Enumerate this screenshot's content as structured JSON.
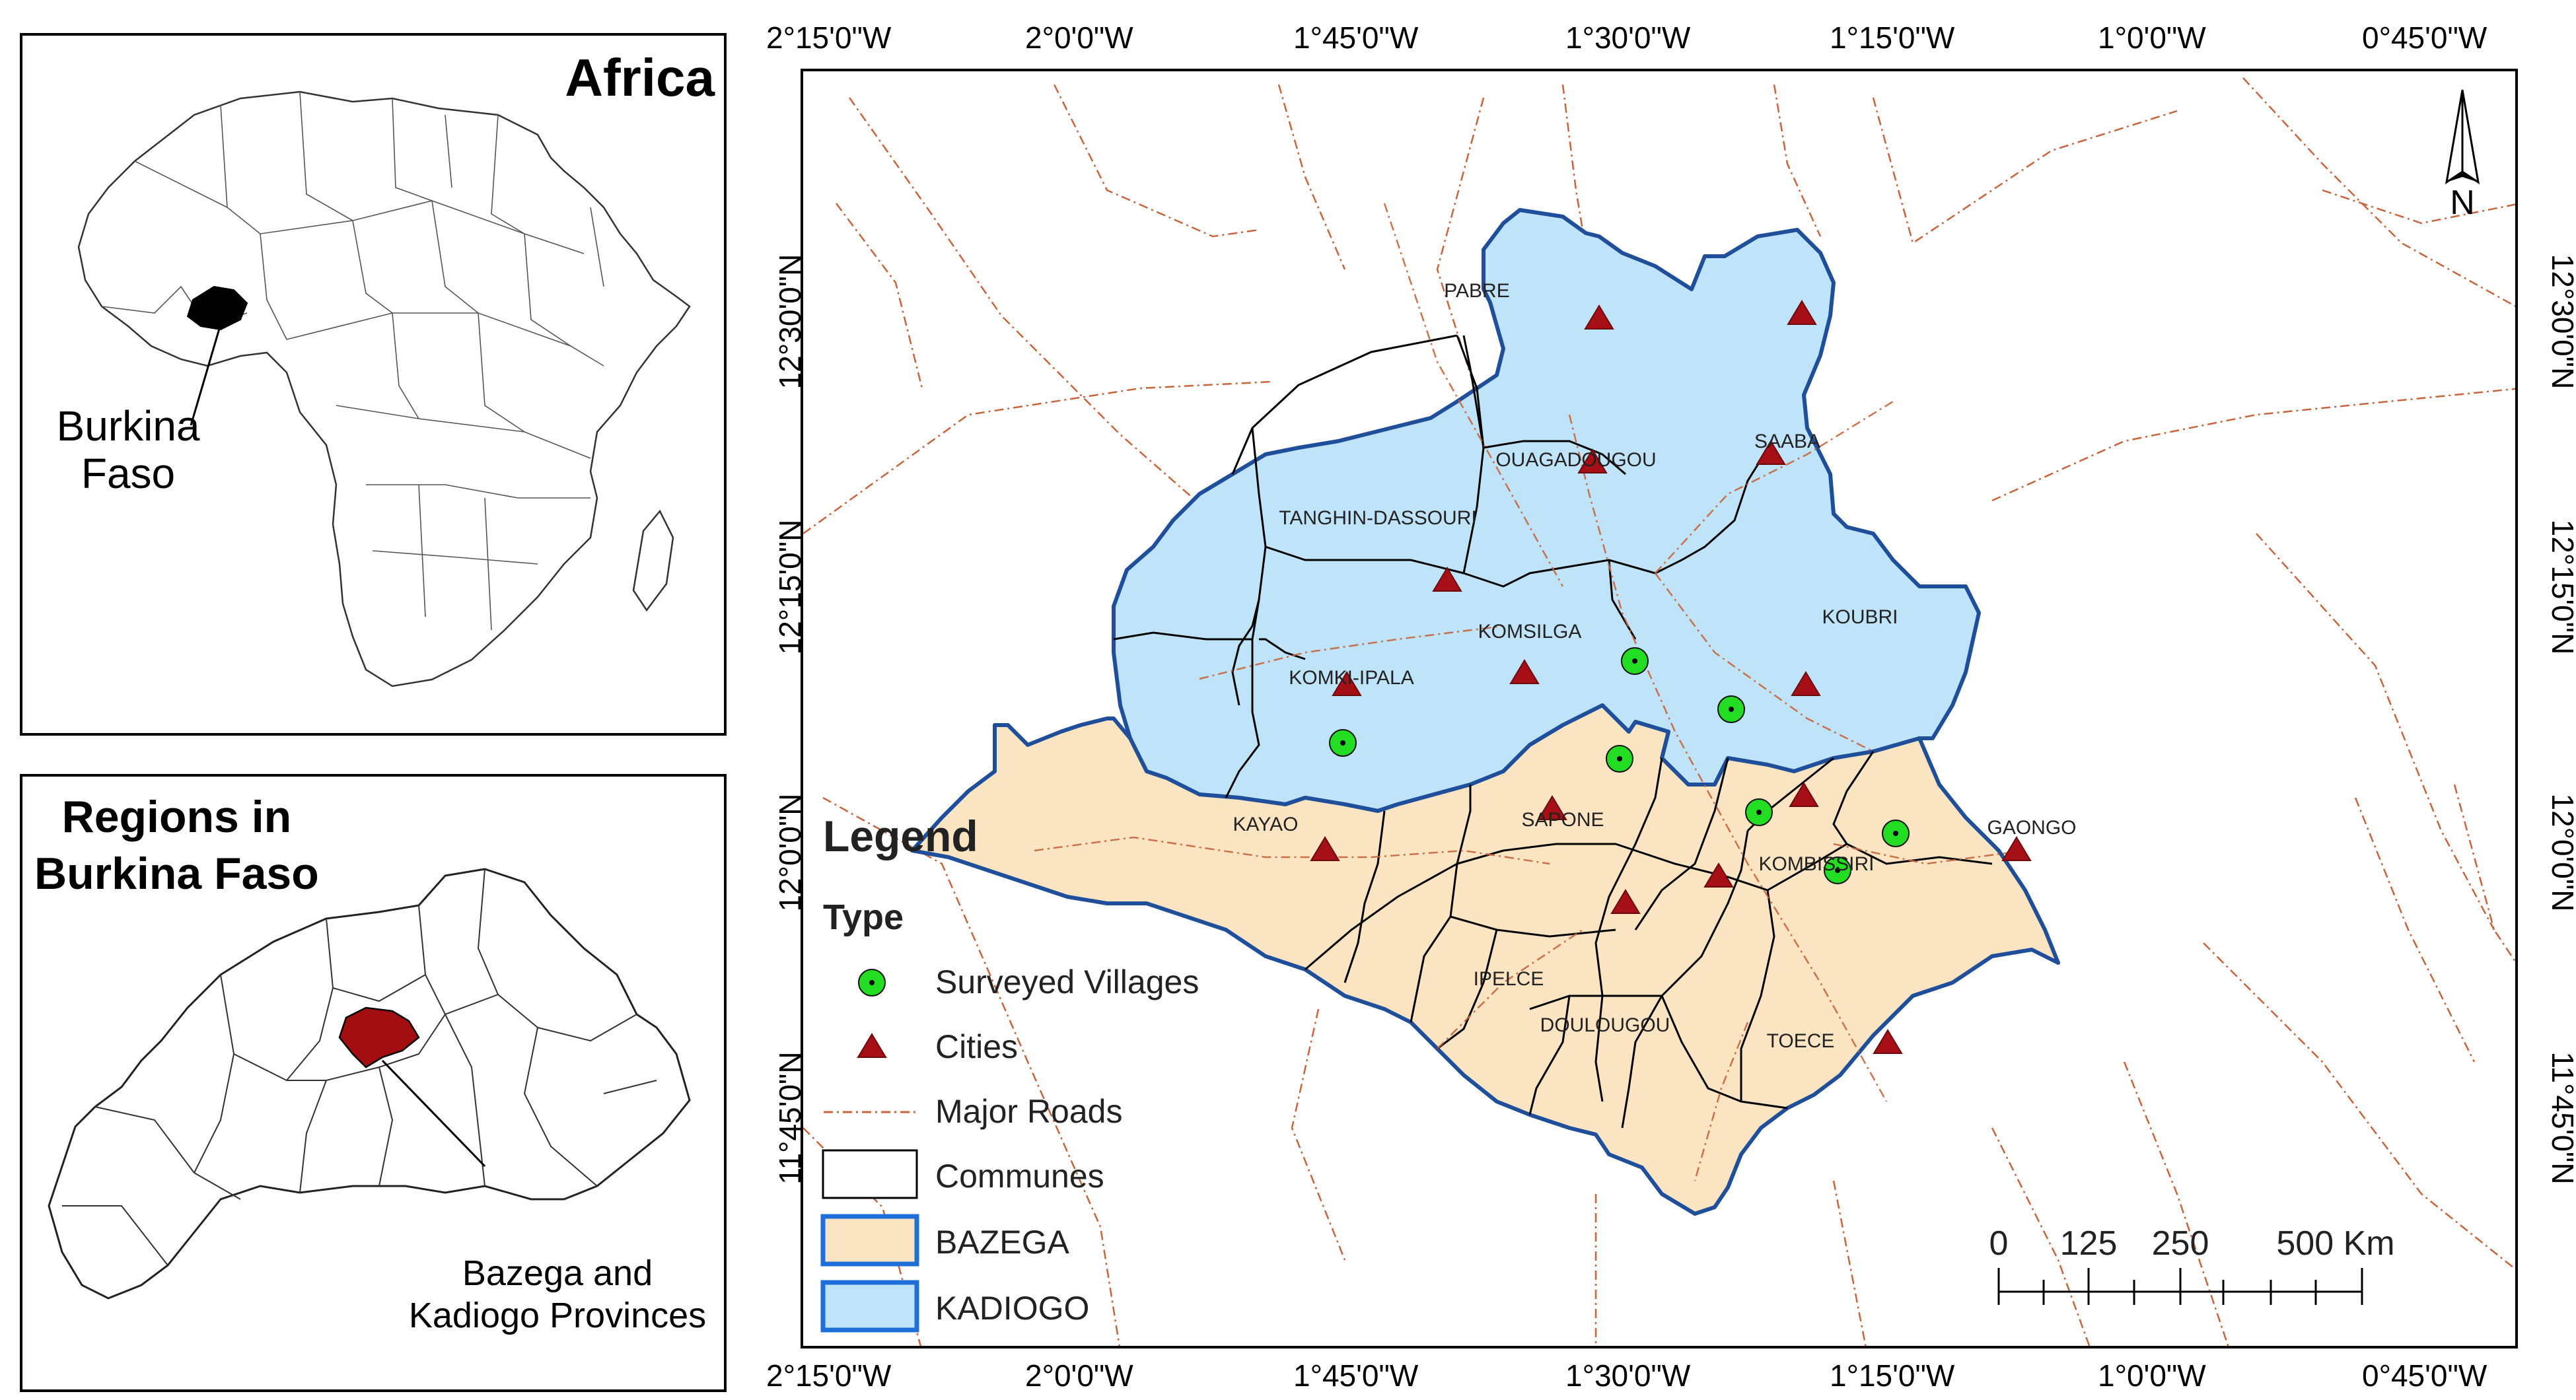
{
  "africa_panel": {
    "title": "Africa",
    "highlight_label": "Burkina\nFaso"
  },
  "regions_panel": {
    "title": "Regions in\nBurkina Faso",
    "highlight_label": "Bazega and\nKadiogo Provinces"
  },
  "grid": {
    "longitude_labels": [
      "2°15'0\"W",
      "2°0'0\"W",
      "1°45'0\"W",
      "1°30'0\"W",
      "1°15'0\"W",
      "1°0'0\"W",
      "0°45'0\"W"
    ],
    "latitude_labels": [
      "12°30'0\"N",
      "12°15'0\"N",
      "12°0'0\"N",
      "11°45'0\"N"
    ]
  },
  "north_arrow": {
    "label": "N"
  },
  "communes": [
    "PABRE",
    "SAABA",
    "OUAGADOUGOU",
    "TANGHIN-DASSOURI",
    "KOMSILGA",
    "KOUBRI",
    "KOMKI-IPALA",
    "KAYAO",
    "SAPONE",
    "GAONGO",
    "KOMBISSIRI",
    "IPELCE",
    "DOULOUGOU",
    "TOECE"
  ],
  "legend": {
    "title": "Legend",
    "type_heading": "Type",
    "items": [
      {
        "label": "Surveyed Villages",
        "symbol": "green-circle-dot"
      },
      {
        "label": "Cities",
        "symbol": "red-triangle"
      },
      {
        "label": "Major Roads",
        "symbol": "dash-dot-line"
      },
      {
        "label": "Communes",
        "symbol": "black-outline-box"
      },
      {
        "label": "BAZEGA",
        "symbol": "tan-fill-box"
      },
      {
        "label": "KADIOGO",
        "symbol": "blue-fill-box"
      }
    ]
  },
  "scale_bar": {
    "labels": [
      "0",
      "125",
      "250",
      "500 Km"
    ]
  },
  "colors": {
    "kadiogo_fill": "#bfe3f8",
    "bazega_fill": "#fae4c2",
    "province_outline": "#1f4e9a",
    "road": "#c8643c",
    "city_marker": "#a50f15",
    "village_marker": "#22dd22",
    "highlight_region": "#a30f10"
  }
}
